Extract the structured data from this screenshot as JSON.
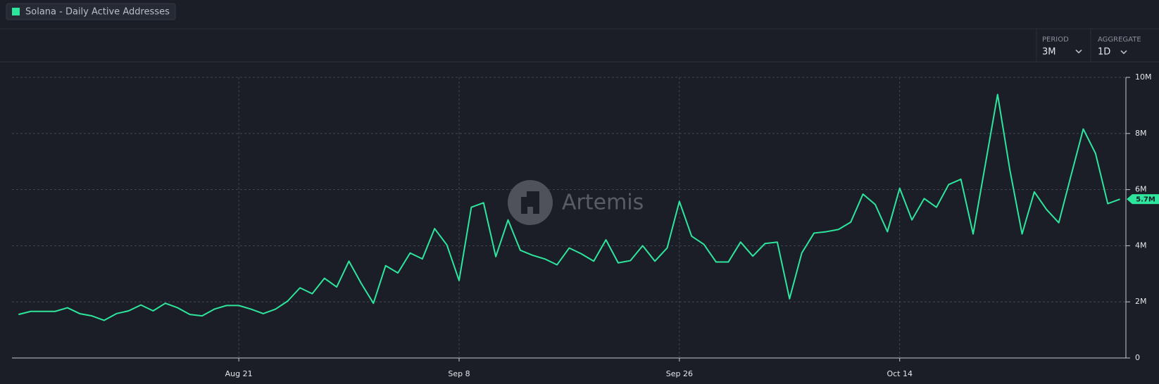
{
  "chart_data": {
    "type": "line",
    "series": [
      {
        "name": "Solana - Daily Active Addresses",
        "color": "#2ee59d",
        "values": [
          1550000,
          1660000,
          1660000,
          1660000,
          1790000,
          1580000,
          1500000,
          1340000,
          1580000,
          1680000,
          1890000,
          1680000,
          1950000,
          1790000,
          1550000,
          1500000,
          1740000,
          1870000,
          1870000,
          1740000,
          1580000,
          1740000,
          2030000,
          2500000,
          2290000,
          2840000,
          2530000,
          3450000,
          2660000,
          1950000,
          3290000,
          3030000,
          3740000,
          3530000,
          4610000,
          4030000,
          2760000,
          5370000,
          5530000,
          3610000,
          4920000,
          3840000,
          3660000,
          3530000,
          3320000,
          3920000,
          3710000,
          3450000,
          4210000,
          3390000,
          3470000,
          4000000,
          3450000,
          3920000,
          5580000,
          4340000,
          4050000,
          3420000,
          3420000,
          4130000,
          3630000,
          4080000,
          4130000,
          2110000,
          3740000,
          4450000,
          4500000,
          4580000,
          4840000,
          5840000,
          5470000,
          4500000,
          6050000,
          4920000,
          5680000,
          5370000,
          6180000,
          6370000,
          4420000,
          6900000,
          9390000,
          6710000,
          4420000,
          5920000,
          5290000,
          4820000,
          6500000,
          8160000,
          7290000,
          5500000,
          5660000
        ],
        "value_labels": [
          null,
          null,
          null,
          null,
          null,
          null,
          null,
          null,
          null,
          null,
          null,
          null,
          null,
          null,
          null,
          null,
          null,
          null,
          null,
          null,
          null,
          null,
          null,
          null,
          null,
          null,
          null,
          null,
          null,
          null,
          null,
          null,
          null,
          null,
          null,
          null,
          null,
          null,
          null,
          null,
          null,
          null,
          null,
          null,
          null,
          null,
          null,
          null,
          null,
          null,
          null,
          null,
          null,
          null,
          null,
          null,
          null,
          null,
          null,
          null,
          null,
          null,
          null,
          null,
          null,
          null,
          null,
          null,
          null,
          null,
          null,
          null,
          null,
          null,
          null,
          null,
          null,
          null,
          null,
          null,
          null,
          null,
          null,
          null,
          null,
          null,
          null,
          null,
          null,
          null,
          "5.7M"
        ]
      }
    ],
    "categories": [
      null,
      null,
      null,
      null,
      null,
      null,
      null,
      null,
      null,
      null,
      null,
      null,
      null,
      null,
      null,
      null,
      null,
      null,
      "Aug 21",
      null,
      null,
      null,
      null,
      null,
      null,
      null,
      null,
      null,
      null,
      null,
      null,
      null,
      null,
      null,
      null,
      null,
      "Sep 8",
      null,
      null,
      null,
      null,
      null,
      null,
      null,
      null,
      null,
      null,
      null,
      null,
      null,
      null,
      null,
      null,
      null,
      "Sep 26",
      null,
      null,
      null,
      null,
      null,
      null,
      null,
      null,
      null,
      null,
      null,
      null,
      null,
      null,
      null,
      null,
      null,
      "Oct 14",
      null,
      null,
      null,
      null,
      null,
      null,
      null,
      null,
      null,
      null,
      null,
      null,
      null,
      null,
      null,
      null,
      null,
      null
    ],
    "ylim": [
      0,
      10000000
    ],
    "yticks": [
      0,
      {
        "value": 2000000,
        "label": "2M"
      },
      {
        "value": 4000000,
        "label": "4M"
      },
      {
        "value": 6000000,
        "label": "6M"
      },
      {
        "value": 8000000,
        "label": "8M"
      },
      {
        "value": 10000000,
        "label": "10M"
      }
    ],
    "grid": true
  },
  "controls": {
    "period": {
      "label": "PERIOD",
      "value": "3M"
    },
    "aggregate": {
      "label": "AGGREGATE",
      "value": "1D"
    }
  },
  "watermark": "Artemis"
}
